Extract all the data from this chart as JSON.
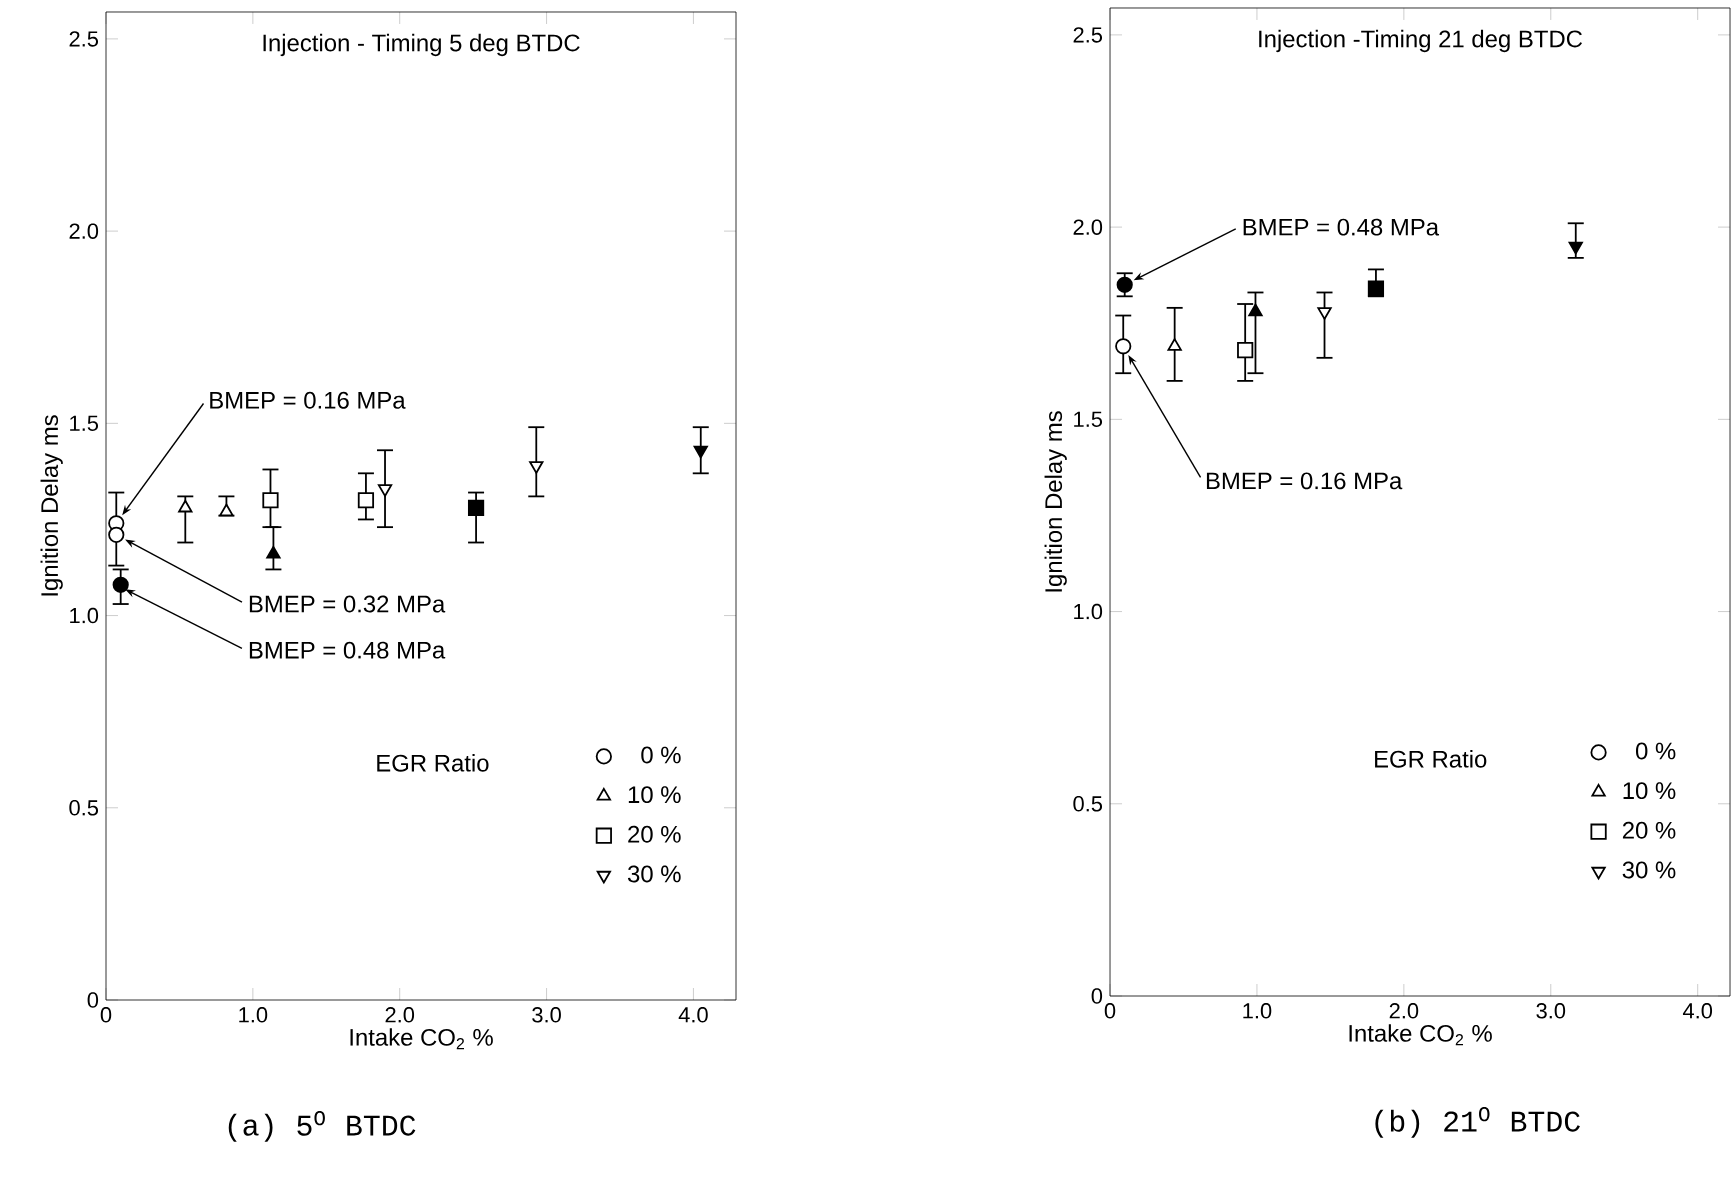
{
  "chart_data": [
    {
      "type": "scatter",
      "title": "Injection - Timing  5 deg BTDC",
      "xlabel": "Intake CO$_{2}$  %",
      "ylabel": "Ignition  Delay   ms",
      "legend_title": "EGR Ratio",
      "legend": "bottom right",
      "xlim": [
        0,
        4.29
      ],
      "ylim": [
        0,
        2.57
      ],
      "xticks": [
        0,
        {
          "value": 1,
          "label": "1.0"
        },
        {
          "value": 2,
          "label": "2.0"
        },
        {
          "value": 3,
          "label": "3.0"
        },
        {
          "value": 4,
          "label": "4.0"
        }
      ],
      "yticks": [
        0,
        {
          "value": 0.5,
          "label": "0.5"
        },
        {
          "value": 1,
          "label": "1.0"
        },
        {
          "value": 1.5,
          "label": "1.5"
        },
        {
          "value": 2,
          "label": "2.0"
        },
        {
          "value": 2.5,
          "label": "2.5"
        }
      ],
      "series": [
        {
          "name": "0 %",
          "color": "#000000",
          "marker": "circle",
          "x": [
            0.07,
            0.07
          ],
          "values": [
            1.24,
            1.21
          ],
          "errors": [
            [
              1.13,
              1.32
            ],
            null
          ]
        },
        {
          "name": "10 %",
          "color": "#000000",
          "marker": "triangle",
          "x": [
            0.54,
            0.82
          ],
          "values": [
            1.28,
            1.27
          ],
          "errors": [
            [
              1.19,
              1.31
            ],
            [
              1.26,
              1.31
            ]
          ]
        },
        {
          "name": "20 %",
          "color": "#000000",
          "marker": "square",
          "x": [
            1.12,
            1.77
          ],
          "values": [
            1.3,
            1.3
          ],
          "errors": [
            [
              1.23,
              1.38
            ],
            [
              1.25,
              1.37
            ]
          ]
        },
        {
          "name": "30 %",
          "color": "#000000",
          "marker": "triangle_down",
          "x": [
            1.9,
            2.93
          ],
          "values": [
            1.33,
            1.39
          ],
          "errors": [
            [
              1.23,
              1.43
            ],
            [
              1.31,
              1.49
            ]
          ]
        },
        {
          "color": "#000000",
          "marker": "circle",
          "x": [
            0.1
          ],
          "values": [
            1.08
          ],
          "errors": [
            [
              1.03,
              1.12
            ]
          ]
        },
        {
          "color": "#000000",
          "marker": "triangle",
          "x": [
            1.14
          ],
          "values": [
            1.16
          ],
          "errors": [
            [
              1.12,
              1.23
            ]
          ]
        },
        {
          "color": "#000000",
          "marker": "square",
          "x": [
            2.52
          ],
          "values": [
            1.28
          ],
          "errors": [
            [
              1.19,
              1.32
            ]
          ]
        },
        {
          "color": "#000000",
          "marker": "triangle_down",
          "x": [
            4.05
          ],
          "values": [
            1.43
          ],
          "errors": [
            [
              1.37,
              1.49
            ]
          ]
        }
      ],
      "annotations": [
        {
          "text": "BMEP = 0.16 MPa",
          "x": 0.07,
          "y": 1.24
        },
        {
          "text": "BMEP = 0.32 MPa",
          "x": 0.07,
          "y": 1.21
        },
        {
          "text": "BMEP = 0.48 MPa",
          "x": 0.07,
          "y": 1.08
        },
        "(a)  5$^{O}$  BTDC"
      ]
    },
    {
      "type": "scatter",
      "title": "Injection -Timing  21 deg BTDC",
      "xlabel": "Intake CO$_{2}$  %",
      "ylabel": "Ignition  Delay   ms",
      "legend_title": "EGR Ratio",
      "legend": "bottom right",
      "xlim": [
        0,
        4.22
      ],
      "ylim": [
        0,
        2.57
      ],
      "xticks": [
        0,
        {
          "value": 1,
          "label": "1.0"
        },
        {
          "value": 2,
          "label": "2.0"
        },
        {
          "value": 3,
          "label": "3.0"
        },
        {
          "value": 4,
          "label": "4.0"
        }
      ],
      "yticks": [
        0,
        {
          "value": 0.5,
          "label": "0.5"
        },
        {
          "value": 1,
          "label": "1.0"
        },
        {
          "value": 1.5,
          "label": "1.5"
        },
        {
          "value": 2,
          "label": "2.0"
        },
        {
          "value": 2.5,
          "label": "2.5"
        }
      ],
      "series": [
        {
          "name": "0 %",
          "color": "#000000",
          "marker": "circle",
          "x": [
            0.09
          ],
          "values": [
            1.69
          ],
          "errors": [
            [
              1.62,
              1.77
            ]
          ]
        },
        {
          "name": "10 %",
          "color": "#000000",
          "marker": "triangle",
          "x": [
            0.44
          ],
          "values": [
            1.69
          ],
          "errors": [
            [
              1.6,
              1.79
            ]
          ]
        },
        {
          "name": "20 %",
          "color": "#000000",
          "marker": "square",
          "x": [
            0.92
          ],
          "values": [
            1.68
          ],
          "errors": [
            [
              1.6,
              1.8
            ]
          ]
        },
        {
          "name": "30 %",
          "color": "#000000",
          "marker": "triangle_down",
          "x": [
            1.46
          ],
          "values": [
            1.78
          ],
          "errors": [
            [
              1.66,
              1.83
            ]
          ]
        },
        {
          "color": "#000000",
          "marker": "circle",
          "x": [
            0.1
          ],
          "values": [
            1.85
          ],
          "errors": [
            [
              1.82,
              1.88
            ]
          ]
        },
        {
          "color": "#000000",
          "marker": "triangle",
          "x": [
            0.99
          ],
          "values": [
            1.78
          ],
          "errors": [
            [
              1.62,
              1.83
            ]
          ]
        },
        {
          "color": "#000000",
          "marker": "square",
          "x": [
            1.81
          ],
          "values": [
            1.84
          ],
          "errors": [
            [
              1.82,
              1.89
            ]
          ]
        },
        {
          "color": "#000000",
          "marker": "triangle_down",
          "x": [
            3.17
          ],
          "values": [
            1.95
          ],
          "errors": [
            [
              1.92,
              2.01
            ]
          ]
        }
      ],
      "annotations": [
        {
          "text": "BMEP = 0.48 MPa",
          "x": 0.1,
          "y": 1.85
        },
        {
          "text": "BMEP = 0.16 MPa",
          "x": 0.09,
          "y": 1.69
        },
        "(b)  21$^{O}$  BTDC"
      ]
    }
  ]
}
